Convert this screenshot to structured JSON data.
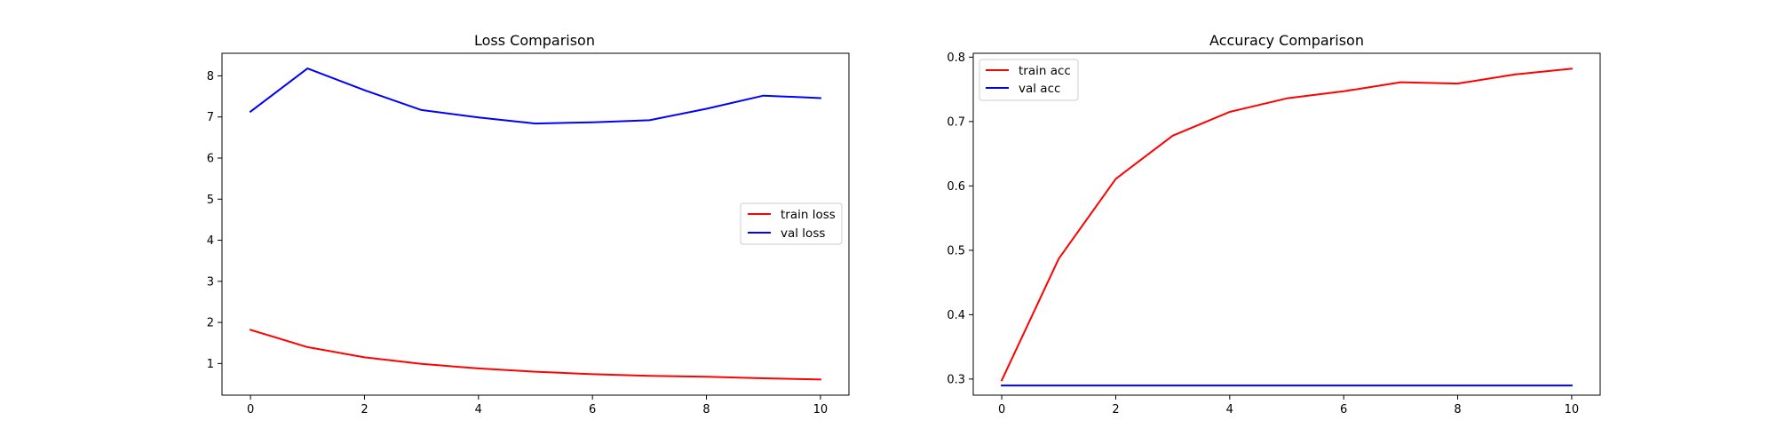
{
  "chart_data": [
    {
      "type": "line",
      "title": "Loss Comparison",
      "xlabel": "",
      "ylabel": "",
      "xlim": [
        -0.5,
        10.5
      ],
      "ylim": [
        0.23,
        8.55
      ],
      "xticks": [
        0,
        2,
        4,
        6,
        8,
        10
      ],
      "yticks": [
        1,
        2,
        3,
        4,
        5,
        6,
        7,
        8
      ],
      "grid": false,
      "legend": "center-right",
      "x": [
        0,
        1,
        2,
        3,
        4,
        5,
        6,
        7,
        8,
        9,
        10
      ],
      "series": [
        {
          "name": "train loss",
          "color": "#ff0000",
          "values": [
            1.82,
            1.4,
            1.15,
            0.99,
            0.88,
            0.8,
            0.74,
            0.7,
            0.68,
            0.64,
            0.61
          ]
        },
        {
          "name": "val loss",
          "color": "#0000ff",
          "values": [
            7.13,
            8.18,
            7.65,
            7.17,
            6.99,
            6.84,
            6.87,
            6.92,
            7.2,
            7.52,
            7.46
          ]
        }
      ]
    },
    {
      "type": "line",
      "title": "Accuracy Comparison",
      "xlabel": "",
      "ylabel": "",
      "xlim": [
        -0.5,
        10.5
      ],
      "ylim": [
        0.275,
        0.806
      ],
      "xticks": [
        0,
        2,
        4,
        6,
        8,
        10
      ],
      "yticks": [
        0.3,
        0.4,
        0.5,
        0.6,
        0.7,
        0.8
      ],
      "grid": false,
      "legend": "upper-left",
      "x": [
        0,
        1,
        2,
        3,
        4,
        5,
        6,
        7,
        8,
        9,
        10
      ],
      "series": [
        {
          "name": "train acc",
          "color": "#ff0000",
          "values": [
            0.298,
            0.487,
            0.611,
            0.678,
            0.715,
            0.736,
            0.747,
            0.761,
            0.759,
            0.773,
            0.782
          ]
        },
        {
          "name": "val acc",
          "color": "#0000ff",
          "values": [
            0.29,
            0.29,
            0.29,
            0.29,
            0.29,
            0.29,
            0.29,
            0.29,
            0.29,
            0.29,
            0.29
          ]
        }
      ]
    }
  ]
}
